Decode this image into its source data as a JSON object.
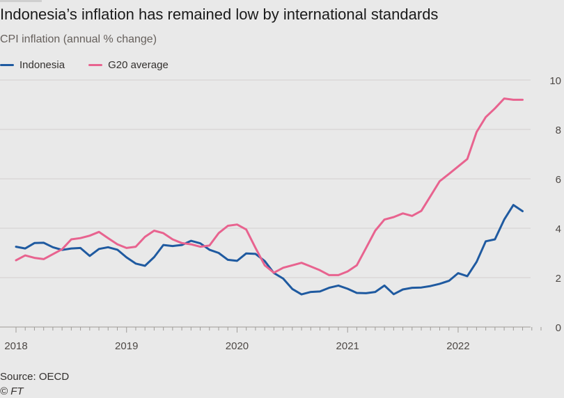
{
  "title": "Indonesia’s inflation has remained low by international standards",
  "subtitle": "CPI inflation (annual % change)",
  "legend": [
    {
      "name": "Indonesia",
      "color": "#1f5aa0"
    },
    {
      "name": "G20 average",
      "color": "#e8638f"
    }
  ],
  "footer": {
    "source": "Source: OECD",
    "credit": "© FT"
  },
  "chart_data": {
    "type": "line",
    "title": "Indonesia’s inflation has remained low by international standards",
    "ylabel": "CPI inflation (annual % change)",
    "xlabel": "",
    "ylim": [
      0,
      10
    ],
    "yticks": [
      0,
      2,
      4,
      6,
      8,
      10
    ],
    "xlim": [
      2018,
      2022.75
    ],
    "xticks": [
      2018,
      2019,
      2020,
      2021,
      2022
    ],
    "xtick_labels": [
      "2018",
      "2019",
      "2020",
      "2021",
      "2022"
    ],
    "x": [
      2018.0,
      2018.083,
      2018.167,
      2018.25,
      2018.333,
      2018.417,
      2018.5,
      2018.583,
      2018.667,
      2018.75,
      2018.833,
      2018.917,
      2019.0,
      2019.083,
      2019.167,
      2019.25,
      2019.333,
      2019.417,
      2019.5,
      2019.583,
      2019.667,
      2019.75,
      2019.833,
      2019.917,
      2020.0,
      2020.083,
      2020.167,
      2020.25,
      2020.333,
      2020.417,
      2020.5,
      2020.583,
      2020.667,
      2020.75,
      2020.833,
      2020.917,
      2021.0,
      2021.083,
      2021.167,
      2021.25,
      2021.333,
      2021.417,
      2021.5,
      2021.583,
      2021.667,
      2021.75,
      2021.833,
      2021.917,
      2022.0,
      2022.083,
      2022.167,
      2022.25,
      2022.333,
      2022.417,
      2022.5,
      2022.583
    ],
    "series": [
      {
        "name": "Indonesia",
        "color": "#1f5aa0",
        "values": [
          3.25,
          3.18,
          3.4,
          3.41,
          3.23,
          3.12,
          3.18,
          3.2,
          2.88,
          3.16,
          3.23,
          3.13,
          2.82,
          2.57,
          2.48,
          2.83,
          3.32,
          3.28,
          3.32,
          3.49,
          3.39,
          3.13,
          3.0,
          2.72,
          2.68,
          2.98,
          2.96,
          2.67,
          2.19,
          1.96,
          1.54,
          1.32,
          1.42,
          1.44,
          1.59,
          1.68,
          1.55,
          1.38,
          1.37,
          1.42,
          1.68,
          1.33,
          1.52,
          1.59,
          1.6,
          1.66,
          1.75,
          1.87,
          2.18,
          2.06,
          2.64,
          3.47,
          3.55,
          4.35,
          4.94,
          4.69
        ]
      },
      {
        "name": "G20 average",
        "color": "#e8638f",
        "values": [
          2.7,
          2.9,
          2.8,
          2.75,
          2.95,
          3.15,
          3.55,
          3.6,
          3.7,
          3.85,
          3.6,
          3.35,
          3.2,
          3.25,
          3.65,
          3.9,
          3.8,
          3.55,
          3.4,
          3.35,
          3.25,
          3.3,
          3.8,
          4.1,
          4.15,
          3.95,
          3.2,
          2.5,
          2.2,
          2.4,
          2.5,
          2.6,
          2.45,
          2.3,
          2.1,
          2.1,
          2.25,
          2.5,
          3.2,
          3.9,
          4.35,
          4.45,
          4.6,
          4.5,
          4.7,
          5.3,
          5.9,
          6.2,
          6.5,
          6.8,
          7.9,
          8.5,
          8.85,
          9.25,
          9.2,
          9.2
        ]
      }
    ],
    "grid": true,
    "legend_position": "top-left"
  }
}
